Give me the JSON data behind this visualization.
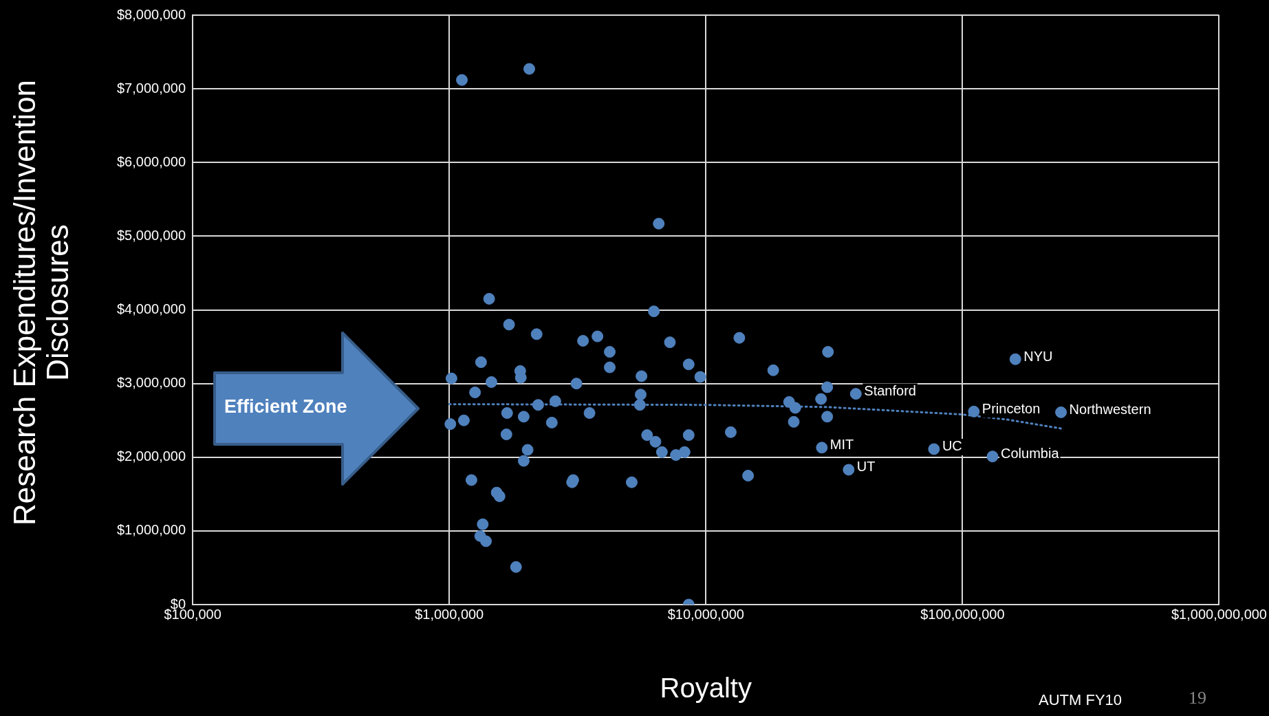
{
  "chart_data": {
    "type": "scatter",
    "xlabel": "Royalty",
    "ylabel": "Research Expenditures/Invention Disclosures",
    "log": "x",
    "grid": true,
    "legend": false,
    "marker": "circle",
    "xlim": [
      100000,
      1000000000
    ],
    "ylim": [
      0,
      8000000
    ],
    "xticks": [
      {
        "value": 100000,
        "label": "$100,000"
      },
      {
        "value": 1000000,
        "label": "$1,000,000"
      },
      {
        "value": 10000000,
        "label": "$10,000,000"
      },
      {
        "value": 100000000,
        "label": "$100,000,000"
      },
      {
        "value": 1000000000,
        "label": "$1,000,000,000"
      }
    ],
    "yticks": [
      {
        "value": 0,
        "label": "$0"
      },
      {
        "value": 1000000,
        "label": "$1,000,000"
      },
      {
        "value": 2000000,
        "label": "$2,000,000"
      },
      {
        "value": 3000000,
        "label": "$3,000,000"
      },
      {
        "value": 4000000,
        "label": "$4,000,000"
      },
      {
        "value": 5000000,
        "label": "$5,000,000"
      },
      {
        "value": 6000000,
        "label": "$6,000,000"
      },
      {
        "value": 7000000,
        "label": "$7,000,000"
      },
      {
        "value": 8000000,
        "label": "$8,000,000"
      }
    ],
    "annotations": [
      "Efficient Zone",
      "AUTM FY10",
      "19"
    ],
    "series": [
      {
        "color": "#4f81bd",
        "x": [
          1120000,
          2050000,
          6550000,
          1430000,
          6270000,
          1710000,
          2190000,
          3320000,
          3780000,
          7240000,
          4220000,
          13500000,
          29900000,
          1330000,
          8570000,
          4220000,
          18300000,
          1890000,
          160700000,
          1020000,
          1900000,
          5610000,
          9510000,
          1460000,
          3130000,
          29700000,
          1260000,
          5570000,
          38400000,
          2590000,
          21100000,
          28100000,
          2220000,
          5530000,
          22300000,
          110700000,
          242000000,
          1680000,
          3520000,
          1950000,
          29700000,
          1140000,
          1010000,
          2510000,
          22000000,
          1670000,
          5900000,
          8570000,
          12500000,
          6360000,
          2020000,
          6740000,
          8260000,
          7640000,
          28300000,
          77400000,
          130900000,
          1950000,
          36000000,
          14600000,
          1220000,
          3040000,
          3010000,
          5140000,
          1530000,
          1570000,
          1350000,
          1320000,
          1390000,
          1820000,
          8570000
        ],
        "values": [
          7120000,
          7270000,
          5170000,
          4150000,
          3980000,
          3800000,
          3670000,
          3580000,
          3640000,
          3560000,
          3430000,
          3620000,
          3430000,
          3290000,
          3260000,
          3220000,
          3180000,
          3170000,
          3330000,
          3070000,
          3080000,
          3100000,
          3090000,
          3020000,
          3000000,
          2950000,
          2880000,
          2850000,
          2860000,
          2760000,
          2750000,
          2790000,
          2710000,
          2710000,
          2670000,
          2620000,
          2610000,
          2600000,
          2600000,
          2550000,
          2550000,
          2500000,
          2450000,
          2470000,
          2480000,
          2310000,
          2300000,
          2300000,
          2340000,
          2210000,
          2100000,
          2070000,
          2070000,
          2030000,
          2130000,
          2110000,
          2010000,
          1950000,
          1830000,
          1750000,
          1690000,
          1690000,
          1660000,
          1660000,
          1520000,
          1470000,
          1090000,
          930000,
          860000,
          510000,
          0
        ],
        "value_labels": [
          null,
          null,
          null,
          null,
          null,
          null,
          null,
          null,
          null,
          null,
          null,
          null,
          null,
          null,
          null,
          null,
          null,
          null,
          "NYU",
          null,
          null,
          null,
          null,
          null,
          null,
          null,
          null,
          null,
          "Stanford",
          null,
          null,
          null,
          null,
          null,
          null,
          "Princeton",
          "Northwestern",
          null,
          null,
          null,
          null,
          null,
          null,
          null,
          null,
          null,
          null,
          null,
          null,
          null,
          null,
          null,
          null,
          null,
          "MIT",
          "UC",
          "Columbia",
          null,
          "UT",
          null,
          null,
          null,
          null,
          null,
          null,
          null,
          null,
          null,
          null,
          null,
          null
        ]
      },
      {
        "type": "line",
        "color": "#4f81bd",
        "line_style": "dotted",
        "marker": "none",
        "x": [
          1000000,
          10000000,
          30000000,
          100000000,
          150000000,
          242000000
        ],
        "values": [
          2720000,
          2710000,
          2680000,
          2580000,
          2510000,
          2390000
        ]
      }
    ]
  }
}
